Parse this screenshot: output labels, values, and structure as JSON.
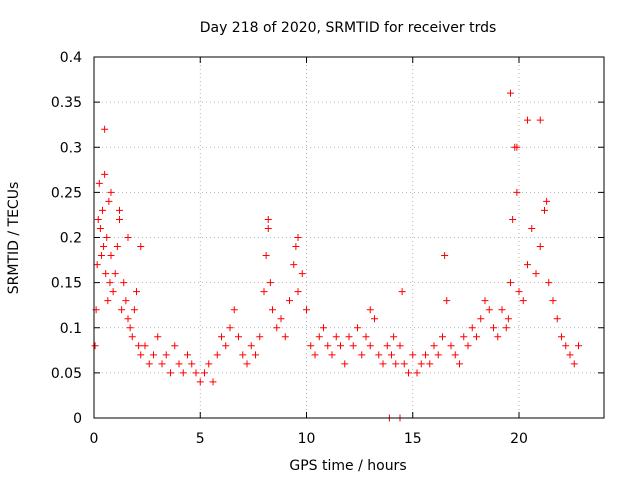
{
  "chart_data": {
    "type": "scatter",
    "title": "Day 218 of 2020, SRMTID for receiver trds",
    "xlabel": "GPS time / hours",
    "ylabel": "SRMTID / TECUs",
    "xlim": [
      0,
      24
    ],
    "ylim": [
      0,
      0.4
    ],
    "xticks": [
      0,
      5,
      10,
      15,
      20
    ],
    "xtick_labels": [
      "0",
      "5",
      "10",
      "15",
      "20"
    ],
    "yticks": [
      0,
      0.05,
      0.1,
      0.15,
      0.2,
      0.25,
      0.3,
      0.35,
      0.4
    ],
    "ytick_labels": [
      "0",
      "0.05",
      "0.1",
      "0.15",
      "0.2",
      "0.25",
      "0.3",
      "0.35",
      "0.4"
    ],
    "grid": true,
    "marker": "+",
    "color": "#ff0000",
    "series": [
      {
        "name": "SRMTID",
        "x": [
          0.05,
          0.1,
          0.15,
          0.2,
          0.25,
          0.3,
          0.35,
          0.4,
          0.45,
          0.5,
          0.55,
          0.6,
          0.65,
          0.7,
          0.75,
          0.8,
          0.9,
          1.0,
          1.1,
          1.2,
          1.3,
          1.4,
          1.5,
          1.6,
          1.7,
          1.8,
          1.9,
          2.0,
          2.1,
          2.2,
          2.4,
          2.6,
          2.8,
          3.0,
          3.2,
          3.4,
          3.6,
          3.8,
          4.0,
          4.2,
          4.4,
          4.6,
          4.8,
          5.0,
          5.2,
          5.4,
          5.6,
          5.8,
          6.0,
          6.2,
          6.4,
          6.6,
          6.8,
          7.0,
          7.2,
          7.4,
          7.6,
          7.8,
          8.0,
          8.1,
          8.2,
          8.3,
          8.4,
          8.6,
          8.8,
          9.0,
          9.2,
          9.4,
          9.5,
          9.6,
          9.8,
          10.0,
          10.2,
          10.4,
          10.6,
          10.8,
          11.0,
          11.2,
          11.4,
          11.6,
          11.8,
          12.0,
          12.2,
          12.4,
          12.6,
          12.8,
          13.0,
          13.2,
          13.4,
          13.6,
          13.8,
          14.0,
          14.1,
          14.2,
          14.4,
          14.6,
          14.8,
          15.0,
          15.2,
          15.4,
          15.6,
          15.8,
          16.0,
          16.2,
          16.4,
          16.6,
          16.8,
          17.0,
          17.2,
          17.4,
          17.6,
          17.8,
          18.0,
          18.2,
          18.4,
          18.6,
          18.8,
          19.0,
          19.2,
          19.4,
          19.5,
          19.6,
          19.7,
          19.8,
          19.9,
          20.0,
          20.2,
          20.4,
          20.6,
          20.8,
          21.0,
          21.2,
          21.4,
          21.6,
          21.8,
          22.0,
          22.2,
          22.4,
          22.6,
          22.8,
          0.5,
          0.8,
          1.2,
          1.6,
          2.2,
          8.2,
          9.6,
          13.0,
          14.5,
          16.5,
          19.6,
          19.9,
          20.4,
          21.0,
          21.3,
          13.9,
          14.4
        ],
        "y": [
          0.08,
          0.12,
          0.17,
          0.22,
          0.26,
          0.21,
          0.18,
          0.23,
          0.19,
          0.27,
          0.16,
          0.2,
          0.13,
          0.24,
          0.15,
          0.18,
          0.14,
          0.16,
          0.19,
          0.22,
          0.12,
          0.15,
          0.13,
          0.11,
          0.1,
          0.09,
          0.12,
          0.14,
          0.08,
          0.07,
          0.08,
          0.06,
          0.07,
          0.09,
          0.06,
          0.07,
          0.05,
          0.08,
          0.06,
          0.05,
          0.07,
          0.06,
          0.05,
          0.04,
          0.05,
          0.06,
          0.04,
          0.07,
          0.09,
          0.08,
          0.1,
          0.12,
          0.09,
          0.07,
          0.06,
          0.08,
          0.07,
          0.09,
          0.14,
          0.18,
          0.21,
          0.15,
          0.12,
          0.1,
          0.11,
          0.09,
          0.13,
          0.17,
          0.19,
          0.14,
          0.16,
          0.12,
          0.08,
          0.07,
          0.09,
          0.1,
          0.08,
          0.07,
          0.09,
          0.08,
          0.06,
          0.09,
          0.08,
          0.1,
          0.07,
          0.09,
          0.08,
          0.11,
          0.07,
          0.06,
          0.08,
          0.07,
          0.09,
          0.06,
          0.08,
          0.06,
          0.05,
          0.07,
          0.05,
          0.06,
          0.07,
          0.06,
          0.08,
          0.07,
          0.09,
          0.13,
          0.08,
          0.07,
          0.06,
          0.09,
          0.08,
          0.1,
          0.09,
          0.11,
          0.13,
          0.12,
          0.1,
          0.09,
          0.12,
          0.1,
          0.11,
          0.15,
          0.22,
          0.3,
          0.25,
          0.14,
          0.13,
          0.17,
          0.21,
          0.16,
          0.19,
          0.23,
          0.15,
          0.13,
          0.11,
          0.09,
          0.08,
          0.07,
          0.06,
          0.08,
          0.32,
          0.25,
          0.23,
          0.2,
          0.19,
          0.22,
          0.2,
          0.12,
          0.14,
          0.18,
          0.36,
          0.3,
          0.33,
          0.33,
          0.24,
          0.0,
          0.0
        ]
      }
    ]
  }
}
